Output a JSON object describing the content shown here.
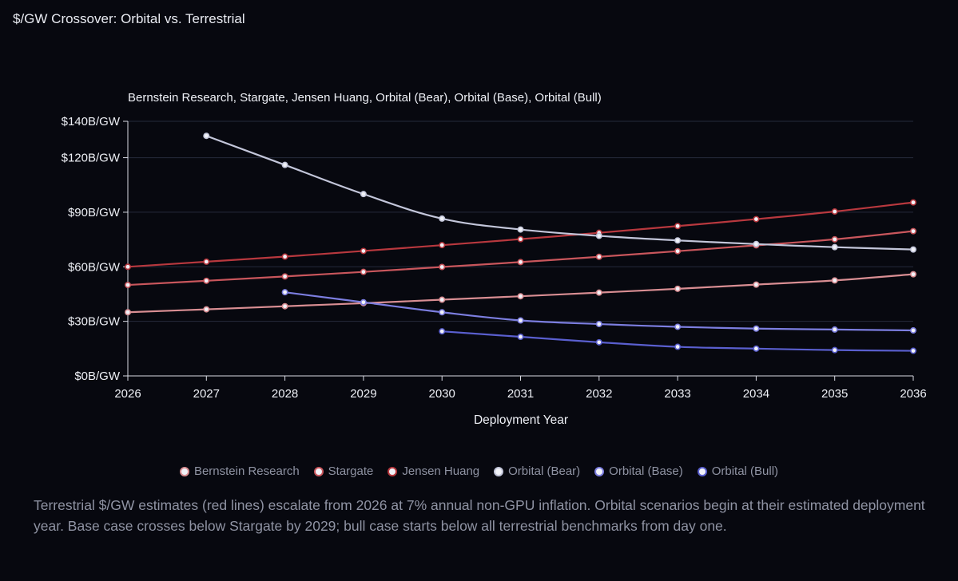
{
  "page": {
    "title": "$/GW Crossover: Orbital vs. Terrestrial",
    "caption": "Terrestrial $/GW estimates (red lines) escalate from 2026 at 7% annual non-GPU inflation. Orbital scenarios begin at their estimated deployment year. Base case crosses below Stargate by 2029; bull case starts below all terrestrial benchmarks from day one."
  },
  "chart_data": {
    "type": "line",
    "title": "Bernstein Research, Stargate, Jensen Huang, Orbital (Bear), Orbital (Base), Orbital (Bull)",
    "xlabel": "Deployment Year",
    "ylabel": "",
    "x": [
      2026,
      2027,
      2028,
      2029,
      2030,
      2031,
      2032,
      2033,
      2034,
      2035,
      2036
    ],
    "xlim": [
      2026,
      2036
    ],
    "ylim": [
      0,
      140
    ],
    "yticks": [
      0,
      30,
      60,
      90,
      120,
      140
    ],
    "ytick_labels": [
      "$0B/GW",
      "$30B/GW",
      "$60B/GW",
      "$90B/GW",
      "$120B/GW",
      "$140B/GW"
    ],
    "xtick_labels": [
      "2026",
      "2027",
      "2028",
      "2029",
      "2030",
      "2031",
      "2032",
      "2033",
      "2034",
      "2035",
      "2036"
    ],
    "grid": true,
    "legend_position": "bottom",
    "series": [
      {
        "name": "Bernstein Research",
        "color": "#d98e93",
        "values": [
          35,
          36.6,
          38.3,
          40,
          41.9,
          43.8,
          45.8,
          47.9,
          50.2,
          52.5,
          55.9
        ]
      },
      {
        "name": "Stargate",
        "color": "#c9565c",
        "values": [
          50,
          52.3,
          54.7,
          57.2,
          59.9,
          62.6,
          65.5,
          68.6,
          71.8,
          75.1,
          79.6
        ]
      },
      {
        "name": "Jensen Huang",
        "color": "#b8383e",
        "values": [
          60,
          62.8,
          65.6,
          68.7,
          71.9,
          75.2,
          78.7,
          82.4,
          86.2,
          90.4,
          95.4
        ]
      },
      {
        "name": "Orbital (Bear)",
        "color": "#c3c6da",
        "values": [
          null,
          132,
          116,
          100,
          86.5,
          80.5,
          77,
          74.5,
          72.5,
          70.8,
          69.5
        ]
      },
      {
        "name": "Orbital (Base)",
        "color": "#7c7ee0",
        "values": [
          null,
          null,
          46,
          40.5,
          35,
          30.5,
          28.5,
          27,
          26,
          25.5,
          25
        ]
      },
      {
        "name": "Orbital (Bull)",
        "color": "#5a5fcf",
        "values": [
          null,
          null,
          null,
          null,
          24.5,
          21.5,
          18.5,
          16,
          15,
          14.2,
          13.8
        ]
      }
    ]
  }
}
